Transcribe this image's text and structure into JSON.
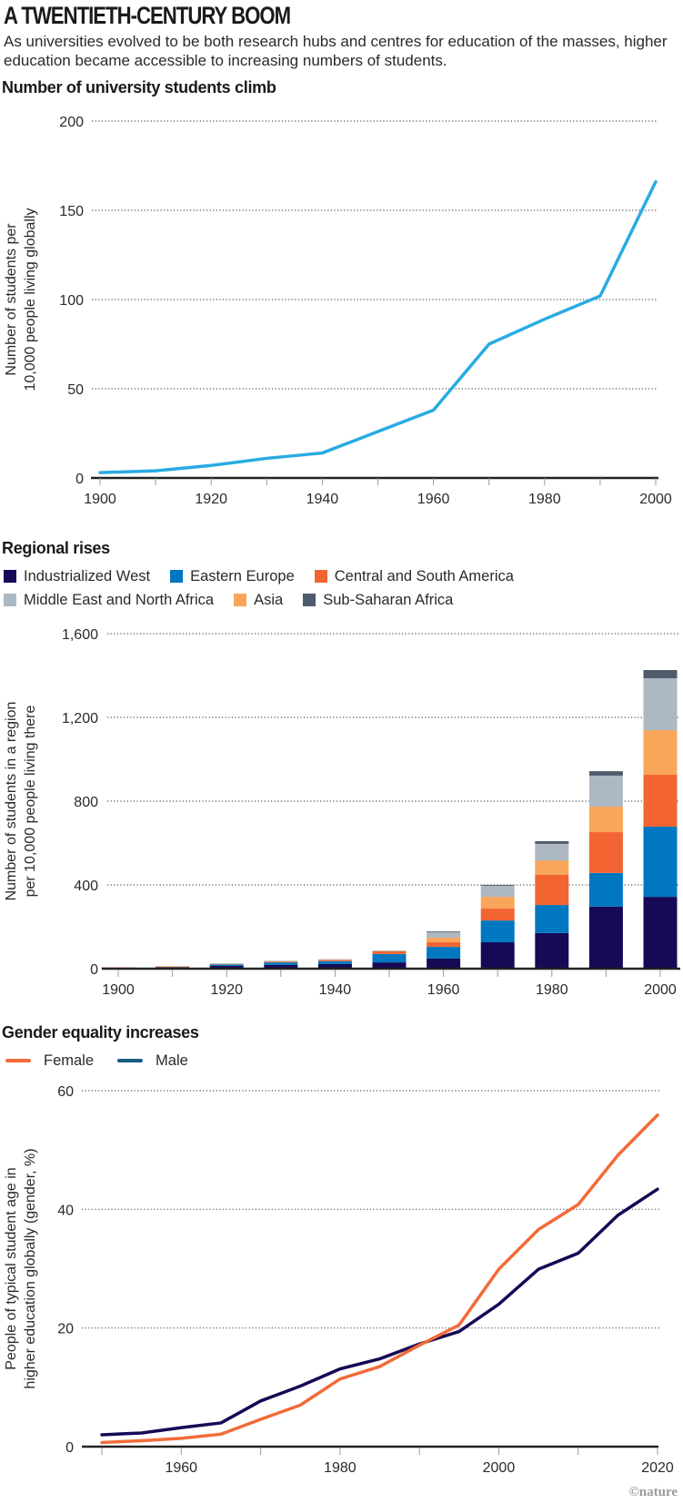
{
  "header": {
    "title": "A TWENTIETH-CENTURY BOOM",
    "subtitle": "As universities evolved to be both research hubs and centres for education of the masses, higher education became accessible to increasing numbers of students."
  },
  "credit": "©nature",
  "chart_data": [
    {
      "type": "line",
      "title": "Number of university students climb",
      "xlabel": "",
      "ylabel": "Number of students per 10,000 people living globally",
      "ylabel_lines": [
        "Number of students per",
        "10,000 people living globally"
      ],
      "x": [
        1900,
        1910,
        1920,
        1930,
        1940,
        1950,
        1960,
        1970,
        1980,
        1990,
        2000
      ],
      "series": [
        {
          "name": "Students per 10,000",
          "color": "#29abe2",
          "values": [
            3,
            4,
            7,
            11,
            14,
            26,
            38,
            75,
            89,
            102,
            166
          ]
        }
      ],
      "xlim": [
        1900,
        2000
      ],
      "ylim": [
        0,
        200
      ],
      "xticks": [
        1900,
        1920,
        1940,
        1960,
        1980,
        2000
      ],
      "xticks_minor": [
        1910,
        1930,
        1950,
        1970,
        1990
      ],
      "yticks": [
        0,
        50,
        100,
        150,
        200
      ],
      "ytick_labels": [
        "0",
        "50",
        "100",
        "150",
        "200"
      ],
      "grid": "horizontal dotted"
    },
    {
      "type": "bar",
      "stacked": true,
      "title": "Regional rises",
      "xlabel": "",
      "ylabel": "Number of students in a region per 10,000 people living there",
      "ylabel_lines": [
        "Number of students in a region",
        "per 10,000 people living there"
      ],
      "categories": [
        1900,
        1910,
        1920,
        1930,
        1940,
        1950,
        1960,
        1970,
        1980,
        1990,
        2000
      ],
      "legend_order": [
        "Industrialized West",
        "Eastern Europe",
        "Central and South America",
        "Middle East and North Africa",
        "Asia",
        "Sub-Saharan Africa"
      ],
      "legend_placement": "top",
      "series": [
        {
          "name": "Industrialized West",
          "color": "#160a56",
          "values": [
            4,
            7,
            13,
            18,
            22,
            30,
            48,
            126,
            170,
            296,
            343
          ]
        },
        {
          "name": "Eastern Europe",
          "color": "#0077c0",
          "values": [
            1,
            2,
            7,
            12,
            14,
            40,
            56,
            104,
            134,
            161,
            335
          ]
        },
        {
          "name": "Central and South America",
          "color": "#f26533",
          "values": [
            1,
            2,
            3,
            4,
            6,
            15,
            22,
            57,
            144,
            195,
            248
          ]
        },
        {
          "name": "Asia",
          "color": "#f9a65a",
          "values": [
            0,
            1,
            1,
            2,
            2,
            1,
            22,
            56,
            69,
            122,
            213
          ]
        },
        {
          "name": "Middle East and North Africa",
          "color": "#adb8c3",
          "values": [
            0,
            0,
            1,
            2,
            1,
            1,
            29,
            53,
            79,
            148,
            248
          ]
        },
        {
          "name": "Sub-Saharan Africa",
          "color": "#4f5b6b",
          "values": [
            0,
            0,
            0,
            0,
            0,
            0,
            1,
            4,
            13,
            21,
            39
          ]
        }
      ],
      "ylim": [
        0,
        1600
      ],
      "yticks": [
        0,
        400,
        800,
        1200,
        1600
      ],
      "ytick_labels": [
        "0",
        "400",
        "800",
        "1,200",
        "1,600"
      ],
      "xticks": [
        1900,
        1920,
        1940,
        1960,
        1980,
        2000
      ],
      "grid": "horizontal dotted"
    },
    {
      "type": "line",
      "title": "Gender equality increases",
      "xlabel": "",
      "ylabel": "People of typical student age in higher education globally (gender, %)",
      "ylabel_lines": [
        "People of typical student age in",
        "higher education globally (gender, %)"
      ],
      "x": [
        1950,
        1955,
        1960,
        1965,
        1970,
        1975,
        1980,
        1985,
        1990,
        1995,
        2000,
        2005,
        2010,
        2015,
        2020
      ],
      "legend_placement": "top-left",
      "series": [
        {
          "name": "Female",
          "color": "#f26b38",
          "values": [
            0.7,
            1.0,
            1.4,
            2.1,
            4.6,
            7.0,
            11.4,
            13.5,
            17.1,
            20.5,
            29.9,
            36.6,
            40.8,
            49.1,
            55.9
          ]
        },
        {
          "name": "Male",
          "color": "#160a56",
          "legend_color": "#1b5c82",
          "values": [
            2.0,
            2.3,
            3.2,
            4.0,
            7.7,
            10.2,
            13.1,
            14.8,
            17.3,
            19.4,
            24.0,
            29.9,
            32.6,
            39.0,
            43.4
          ]
        }
      ],
      "xlim": [
        1950,
        2020
      ],
      "ylim": [
        0,
        60
      ],
      "xticks": [
        1960,
        1980,
        2000,
        2020
      ],
      "xticks_minor": [
        1950,
        1970,
        1990,
        2010
      ],
      "yticks": [
        0,
        20,
        40,
        60
      ],
      "ytick_labels": [
        "0",
        "20",
        "40",
        "60"
      ],
      "grid": "horizontal dotted"
    }
  ]
}
